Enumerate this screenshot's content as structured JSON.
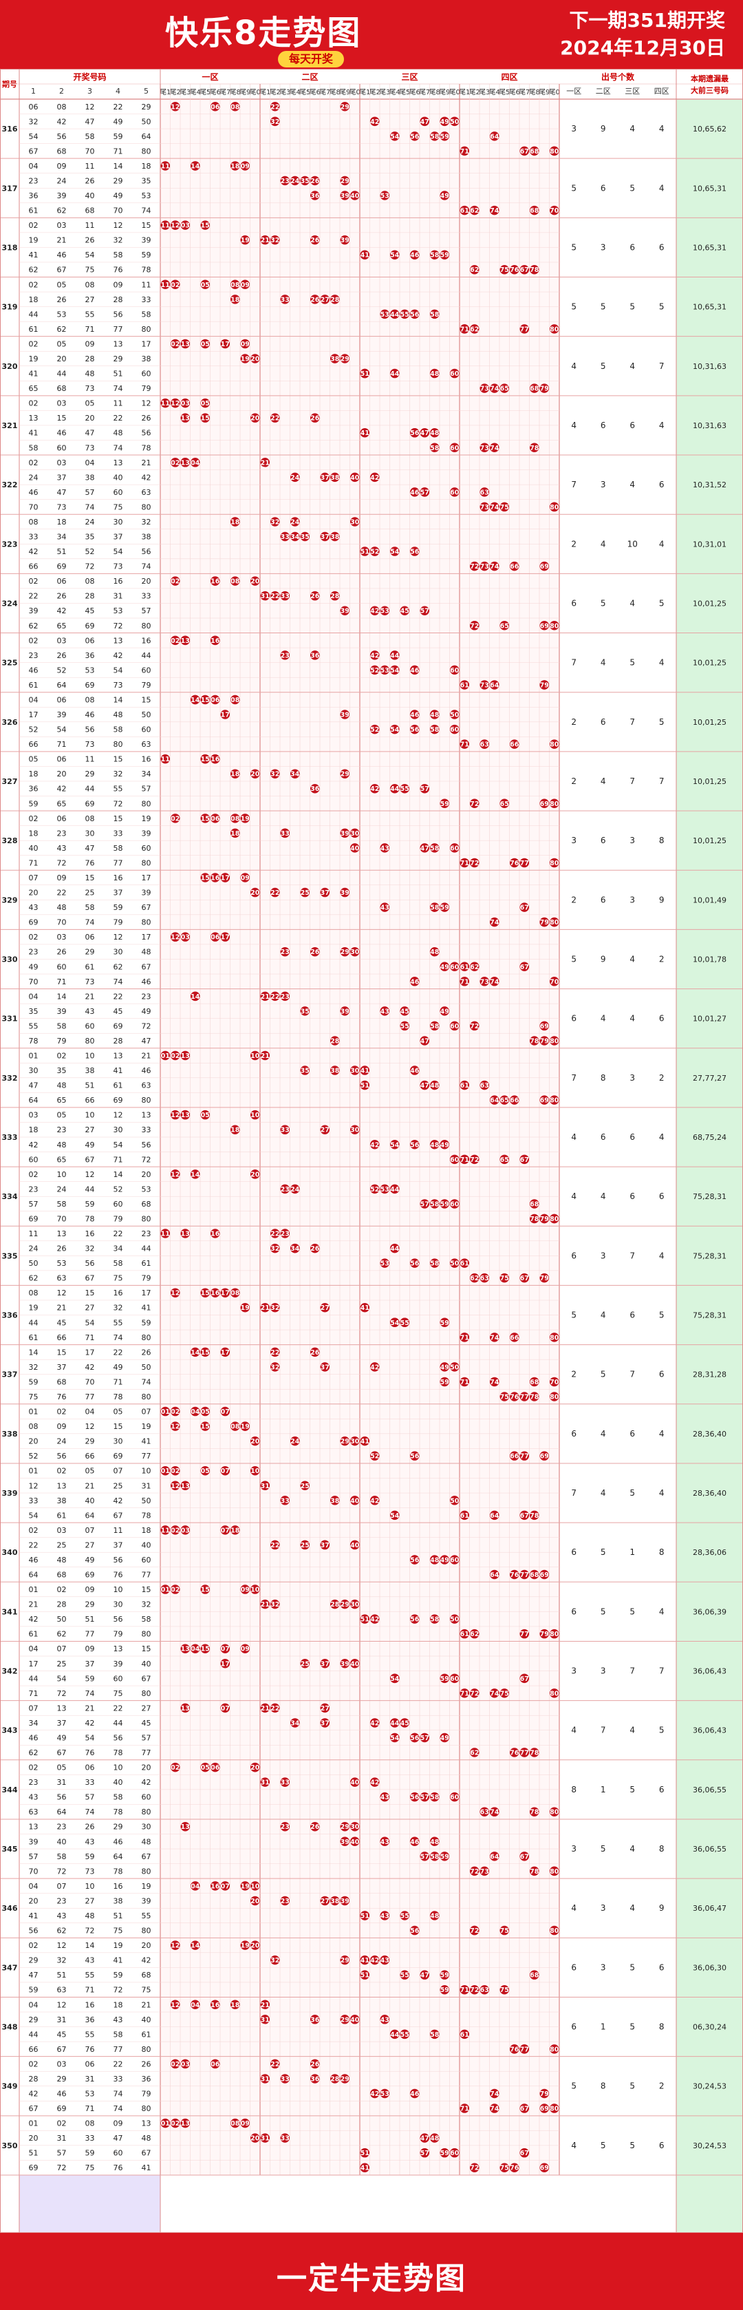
{
  "header": {
    "title": "快乐8走势图",
    "subtitle": "每天开奖",
    "next_draw": "下一期351期开奖",
    "next_date": "2024年12月30日"
  },
  "footer": {
    "brand": "一定牛走势图"
  },
  "table": {
    "col_issue": "期号",
    "col_numbers": "开奖号码",
    "number_cols": [
      "1",
      "2",
      "3",
      "4",
      "5"
    ],
    "zones": [
      "一区",
      "二区",
      "三区",
      "四区"
    ],
    "tails": [
      "尾1",
      "尾2",
      "尾3",
      "尾4",
      "尾5",
      "尾6",
      "尾7",
      "尾8",
      "尾9",
      "尾0"
    ],
    "col_count_group": "出号个数",
    "count_cols": [
      "一区",
      "二区",
      "三区",
      "四区"
    ],
    "col_missing_line1": "本期遗漏最",
    "col_missing_line2": "大前三号码"
  },
  "colors": {
    "red": "#d8151e",
    "ball": "#c3121c",
    "grid_pink": "#f4d4d4",
    "left_panel": "#e8e2fb",
    "right_panel": "#d9f5dd",
    "zone_bg": "#fff7f7"
  },
  "chart_data": {
    "type": "table",
    "rows": [
      {
        "issue": "316",
        "numbers": [
          6,
          8,
          12,
          22,
          29,
          32,
          42,
          47,
          49,
          50,
          54,
          56,
          58,
          59,
          64,
          67,
          68,
          70,
          71,
          80
        ],
        "counts": [
          3,
          9,
          4,
          4
        ],
        "missing": "10,65,62"
      },
      {
        "issue": "317",
        "numbers": [
          4,
          9,
          11,
          14,
          18,
          23,
          24,
          26,
          29,
          35,
          36,
          39,
          40,
          49,
          53,
          61,
          62,
          68,
          70,
          74
        ],
        "counts": [
          5,
          6,
          5,
          4
        ],
        "missing": "10,65,31"
      },
      {
        "issue": "318",
        "numbers": [
          2,
          3,
          11,
          12,
          15,
          19,
          21,
          26,
          32,
          39,
          41,
          46,
          54,
          58,
          59,
          62,
          67,
          75,
          76,
          78
        ],
        "counts": [
          5,
          3,
          6,
          6
        ],
        "missing": "10,65,31"
      },
      {
        "issue": "319",
        "numbers": [
          2,
          5,
          8,
          9,
          11,
          18,
          26,
          27,
          28,
          33,
          44,
          53,
          55,
          56,
          58,
          61,
          62,
          71,
          77,
          80
        ],
        "counts": [
          5,
          5,
          5,
          5
        ],
        "missing": "10,65,31"
      },
      {
        "issue": "320",
        "numbers": [
          2,
          5,
          9,
          13,
          17,
          19,
          20,
          28,
          29,
          38,
          41,
          44,
          48,
          51,
          60,
          65,
          68,
          73,
          74,
          79
        ],
        "counts": [
          4,
          5,
          4,
          7
        ],
        "missing": "10,31,63"
      },
      {
        "issue": "321",
        "numbers": [
          2,
          3,
          5,
          11,
          12,
          13,
          15,
          20,
          22,
          26,
          41,
          46,
          47,
          48,
          56,
          58,
          60,
          73,
          74,
          78
        ],
        "counts": [
          4,
          6,
          6,
          4
        ],
        "missing": "10,31,63"
      },
      {
        "issue": "322",
        "numbers": [
          2,
          3,
          4,
          13,
          21,
          24,
          37,
          38,
          40,
          42,
          46,
          47,
          57,
          60,
          63,
          70,
          73,
          74,
          75,
          80
        ],
        "counts": [
          7,
          3,
          4,
          6
        ],
        "missing": "10,31,52"
      },
      {
        "issue": "323",
        "numbers": [
          8,
          18,
          24,
          30,
          32,
          33,
          34,
          35,
          37,
          38,
          42,
          51,
          52,
          54,
          56,
          66,
          69,
          72,
          73,
          74
        ],
        "counts": [
          2,
          4,
          10,
          4
        ],
        "missing": "10,31,01"
      },
      {
        "issue": "324",
        "numbers": [
          2,
          6,
          8,
          16,
          20,
          22,
          26,
          28,
          31,
          33,
          39,
          42,
          45,
          53,
          57,
          62,
          65,
          69,
          72,
          80
        ],
        "counts": [
          6,
          5,
          4,
          5
        ],
        "missing": "10,01,25"
      },
      {
        "issue": "325",
        "numbers": [
          2,
          3,
          6,
          13,
          16,
          23,
          26,
          36,
          42,
          44,
          46,
          52,
          53,
          54,
          60,
          61,
          64,
          69,
          73,
          79
        ],
        "counts": [
          7,
          4,
          5,
          4
        ],
        "missing": "10,01,25"
      },
      {
        "issue": "326",
        "numbers": [
          4,
          6,
          8,
          14,
          15,
          17,
          39,
          46,
          48,
          50,
          52,
          54,
          56,
          58,
          60,
          66,
          71,
          73,
          80,
          63
        ],
        "counts": [
          2,
          6,
          7,
          5
        ],
        "missing": "10,01,25"
      },
      {
        "issue": "327",
        "numbers": [
          5,
          6,
          11,
          15,
          16,
          18,
          20,
          29,
          32,
          34,
          36,
          42,
          44,
          55,
          57,
          59,
          65,
          69,
          72,
          80
        ],
        "counts": [
          2,
          4,
          7,
          7
        ],
        "missing": "10,01,25"
      },
      {
        "issue": "328",
        "numbers": [
          2,
          6,
          8,
          15,
          19,
          18,
          23,
          30,
          33,
          39,
          40,
          43,
          47,
          58,
          60,
          71,
          72,
          76,
          77,
          80
        ],
        "counts": [
          3,
          6,
          3,
          8
        ],
        "missing": "10,01,25"
      },
      {
        "issue": "329",
        "numbers": [
          7,
          9,
          15,
          16,
          17,
          20,
          22,
          25,
          37,
          39,
          43,
          48,
          58,
          59,
          67,
          69,
          70,
          74,
          79,
          80
        ],
        "counts": [
          2,
          6,
          3,
          9
        ],
        "missing": "10,01,49"
      },
      {
        "issue": "330",
        "numbers": [
          2,
          3,
          6,
          12,
          17,
          23,
          26,
          29,
          30,
          48,
          49,
          60,
          61,
          62,
          67,
          70,
          71,
          73,
          74,
          46
        ],
        "counts": [
          5,
          9,
          4,
          2
        ],
        "missing": "10,01,78"
      },
      {
        "issue": "331",
        "numbers": [
          4,
          14,
          21,
          22,
          23,
          35,
          39,
          43,
          45,
          49,
          55,
          58,
          60,
          69,
          72,
          78,
          79,
          80,
          28,
          47
        ],
        "counts": [
          6,
          4,
          4,
          6
        ],
        "missing": "10,01,27"
      },
      {
        "issue": "332",
        "numbers": [
          1,
          2,
          10,
          13,
          21,
          30,
          35,
          38,
          41,
          46,
          47,
          48,
          51,
          61,
          63,
          64,
          65,
          66,
          69,
          80
        ],
        "counts": [
          7,
          8,
          3,
          2
        ],
        "missing": "27,77,27"
      },
      {
        "issue": "333",
        "numbers": [
          3,
          5,
          10,
          12,
          13,
          18,
          23,
          27,
          30,
          33,
          42,
          48,
          49,
          54,
          56,
          60,
          65,
          67,
          71,
          72
        ],
        "counts": [
          4,
          6,
          6,
          4
        ],
        "missing": "68,75,24"
      },
      {
        "issue": "334",
        "numbers": [
          2,
          10,
          12,
          14,
          20,
          23,
          24,
          44,
          52,
          53,
          57,
          58,
          59,
          60,
          68,
          69,
          70,
          78,
          79,
          80
        ],
        "counts": [
          4,
          4,
          6,
          6
        ],
        "missing": "75,28,31"
      },
      {
        "issue": "335",
        "numbers": [
          11,
          13,
          16,
          22,
          23,
          24,
          26,
          32,
          34,
          44,
          50,
          53,
          56,
          58,
          61,
          62,
          63,
          67,
          75,
          79
        ],
        "counts": [
          6,
          3,
          7,
          4
        ],
        "missing": "75,28,31"
      },
      {
        "issue": "336",
        "numbers": [
          8,
          12,
          15,
          16,
          17,
          19,
          21,
          27,
          32,
          41,
          44,
          45,
          54,
          55,
          59,
          61,
          66,
          71,
          74,
          80
        ],
        "counts": [
          5,
          4,
          6,
          5
        ],
        "missing": "75,28,31"
      },
      {
        "issue": "337",
        "numbers": [
          14,
          15,
          17,
          22,
          26,
          32,
          37,
          42,
          49,
          50,
          59,
          68,
          70,
          71,
          74,
          75,
          76,
          77,
          78,
          80
        ],
        "counts": [
          2,
          5,
          7,
          6
        ],
        "missing": "28,31,28"
      },
      {
        "issue": "338",
        "numbers": [
          1,
          2,
          4,
          5,
          7,
          8,
          9,
          12,
          15,
          19,
          20,
          24,
          29,
          30,
          41,
          52,
          56,
          66,
          69,
          77
        ],
        "counts": [
          6,
          4,
          6,
          4
        ],
        "missing": "28,36,40"
      },
      {
        "issue": "339",
        "numbers": [
          1,
          2,
          5,
          7,
          10,
          12,
          13,
          21,
          25,
          31,
          33,
          38,
          40,
          42,
          50,
          54,
          61,
          64,
          67,
          78
        ],
        "counts": [
          7,
          4,
          5,
          4
        ],
        "missing": "28,36,40"
      },
      {
        "issue": "340",
        "numbers": [
          2,
          3,
          7,
          11,
          18,
          22,
          25,
          27,
          37,
          40,
          46,
          48,
          49,
          56,
          60,
          64,
          68,
          69,
          76,
          77
        ],
        "counts": [
          6,
          5,
          1,
          8
        ],
        "missing": "28,36,06"
      },
      {
        "issue": "341",
        "numbers": [
          1,
          2,
          9,
          10,
          15,
          21,
          28,
          29,
          30,
          32,
          42,
          50,
          51,
          56,
          58,
          61,
          62,
          77,
          79,
          80
        ],
        "counts": [
          6,
          5,
          5,
          4
        ],
        "missing": "36,06,39"
      },
      {
        "issue": "342",
        "numbers": [
          4,
          7,
          9,
          13,
          15,
          17,
          25,
          37,
          39,
          40,
          44,
          54,
          59,
          60,
          67,
          71,
          72,
          74,
          75,
          80
        ],
        "counts": [
          3,
          3,
          7,
          7
        ],
        "missing": "36,06,43"
      },
      {
        "issue": "343",
        "numbers": [
          7,
          13,
          21,
          22,
          27,
          34,
          37,
          42,
          44,
          45,
          46,
          49,
          54,
          56,
          57,
          62,
          67,
          76,
          78,
          77
        ],
        "counts": [
          4,
          7,
          4,
          5
        ],
        "missing": "36,06,43"
      },
      {
        "issue": "344",
        "numbers": [
          2,
          5,
          6,
          10,
          20,
          23,
          31,
          33,
          40,
          42,
          43,
          56,
          57,
          58,
          60,
          63,
          64,
          74,
          78,
          80
        ],
        "counts": [
          8,
          1,
          5,
          6
        ],
        "missing": "36,06,55"
      },
      {
        "issue": "345",
        "numbers": [
          13,
          23,
          26,
          29,
          30,
          39,
          40,
          43,
          46,
          48,
          57,
          58,
          59,
          64,
          67,
          70,
          72,
          73,
          78,
          80
        ],
        "counts": [
          3,
          5,
          4,
          8
        ],
        "missing": "36,06,55"
      },
      {
        "issue": "346",
        "numbers": [
          4,
          7,
          10,
          16,
          19,
          20,
          23,
          27,
          38,
          39,
          41,
          43,
          48,
          51,
          55,
          56,
          62,
          72,
          75,
          80
        ],
        "counts": [
          4,
          3,
          4,
          9
        ],
        "missing": "36,06,47"
      },
      {
        "issue": "347",
        "numbers": [
          2,
          12,
          14,
          19,
          20,
          29,
          32,
          43,
          41,
          42,
          47,
          51,
          55,
          59,
          68,
          59,
          63,
          71,
          72,
          75
        ],
        "counts": [
          6,
          3,
          5,
          6
        ],
        "missing": "36,06,30"
      },
      {
        "issue": "348",
        "numbers": [
          4,
          12,
          16,
          18,
          21,
          29,
          31,
          36,
          43,
          40,
          44,
          45,
          55,
          58,
          61,
          66,
          67,
          76,
          77,
          80
        ],
        "counts": [
          6,
          1,
          5,
          8
        ],
        "missing": "06,30,24"
      },
      {
        "issue": "349",
        "numbers": [
          2,
          3,
          6,
          22,
          26,
          28,
          29,
          31,
          33,
          36,
          42,
          46,
          53,
          74,
          79,
          67,
          69,
          71,
          74,
          80
        ],
        "counts": [
          5,
          8,
          5,
          2
        ],
        "missing": "30,24,53"
      },
      {
        "issue": "350",
        "numbers": [
          1,
          2,
          8,
          9,
          13,
          20,
          31,
          33,
          47,
          48,
          51,
          57,
          59,
          60,
          67,
          69,
          72,
          75,
          76,
          41
        ],
        "counts": [
          4,
          5,
          5,
          6
        ],
        "missing": "30,24,53"
      }
    ]
  }
}
